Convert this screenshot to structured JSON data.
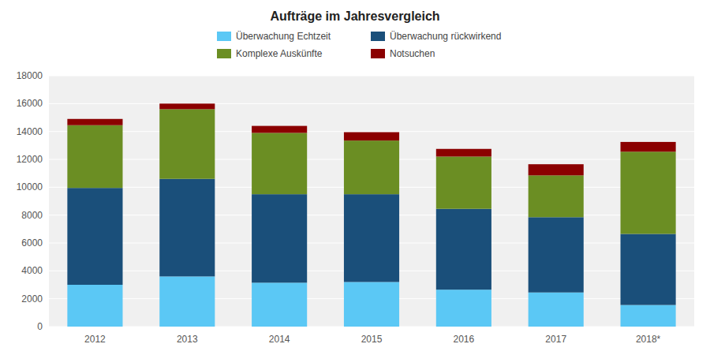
{
  "chart_data": {
    "type": "bar",
    "stacked": true,
    "title": "Aufträge im Jahresvergleich",
    "categories": [
      "2012",
      "2013",
      "2014",
      "2015",
      "2016",
      "2017",
      "2018*"
    ],
    "series": [
      {
        "name": "Überwachung Echtzeit",
        "color": "#5BC8F5",
        "values": [
          3000,
          3600,
          3150,
          3200,
          2650,
          2450,
          1550
        ]
      },
      {
        "name": "Überwachung rückwirkend",
        "color": "#1A4F7A",
        "values": [
          6950,
          7000,
          6350,
          6300,
          5800,
          5400,
          5100
        ]
      },
      {
        "name": "Komplexe Auskünfte",
        "color": "#6B8E23",
        "values": [
          4500,
          5000,
          4400,
          3850,
          3750,
          3000,
          5900
        ]
      },
      {
        "name": "Notsuchen",
        "color": "#8B0000",
        "values": [
          450,
          400,
          500,
          600,
          550,
          800,
          700
        ]
      }
    ],
    "ylim": [
      0,
      18000
    ],
    "yticks": [
      0,
      2000,
      4000,
      6000,
      8000,
      10000,
      12000,
      14000,
      16000,
      18000
    ],
    "grid": true,
    "legend": "top"
  }
}
